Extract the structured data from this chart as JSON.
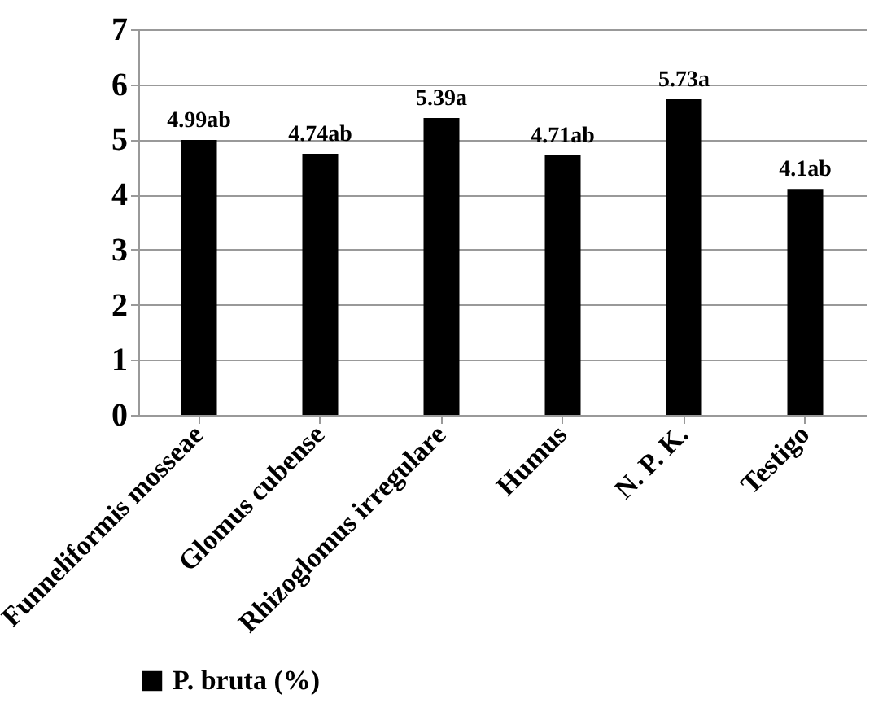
{
  "chart_data": {
    "type": "bar",
    "categories": [
      "Funneliformis mosseae",
      "Glomus cubense",
      "Rhizoglomus irregulare",
      "Humus",
      "N. P. K.",
      "Testigo"
    ],
    "series": [
      {
        "name": "P. bruta (%)",
        "color": "#000000",
        "values": [
          4.99,
          4.74,
          5.39,
          4.71,
          5.73,
          4.1
        ],
        "value_labels": [
          "4.99ab",
          "4.74ab",
          "5.39a",
          "4.71ab",
          "5.73a",
          "4.1ab"
        ]
      }
    ],
    "ylim": [
      0,
      7
    ],
    "yticks": [
      0,
      1,
      2,
      3,
      4,
      5,
      6,
      7
    ],
    "grid": "y",
    "legend": "bottom"
  }
}
